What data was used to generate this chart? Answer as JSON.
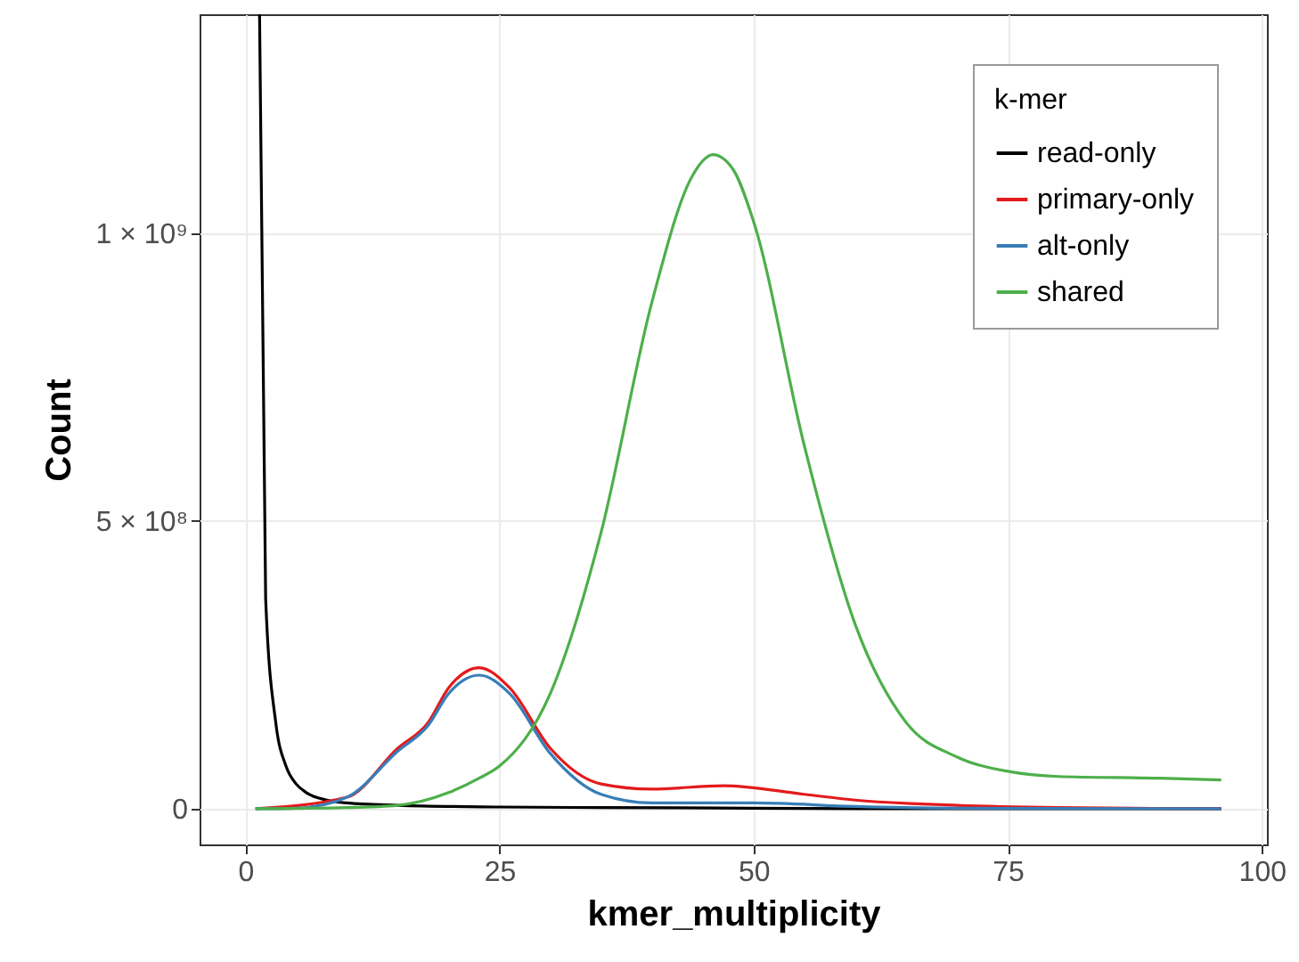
{
  "chart_data": {
    "type": "line",
    "xlabel": "kmer_multiplicity",
    "ylabel": "Count",
    "legend_title": "k-mer",
    "legend": "top right",
    "grid": true,
    "xlim": [
      -4.5,
      100.5
    ],
    "xticks": [
      0,
      25,
      50,
      75,
      100
    ],
    "ylim": [
      -62000000,
      1380000000
    ],
    "yticks": [
      0,
      {
        "value": 500000000,
        "label": "5 × 10⁸"
      },
      {
        "value": 1000000000,
        "label": "1 × 10⁹"
      }
    ],
    "series": [
      {
        "name": "read-only",
        "color": "#000000",
        "x": [
          1.4,
          2,
          3,
          4,
          5,
          6,
          8,
          10,
          15,
          25,
          35,
          50,
          60,
          75,
          96
        ],
        "values": [
          1380000000,
          365000000,
          149000000,
          74000000,
          43000000,
          28000000,
          15000000,
          10000000,
          6000000,
          3000000,
          2000000,
          1000000,
          0,
          0,
          0
        ]
      },
      {
        "name": "primary-only",
        "color": "#e41a1c",
        "x": [
          1,
          10,
          15,
          18,
          20,
          23,
          26,
          30,
          35,
          40,
          47,
          55,
          60,
          70,
          80,
          96
        ],
        "values": [
          0,
          20000000,
          105000000,
          150000000,
          210000000,
          245000000,
          210000000,
          105000000,
          43000000,
          34000000,
          40000000,
          25000000,
          15000000,
          6000000,
          2000000,
          0
        ]
      },
      {
        "name": "alt-only",
        "color": "#377eb8",
        "x": [
          1,
          5,
          10,
          15,
          18,
          20,
          23,
          26,
          30,
          35,
          40,
          50,
          60,
          70,
          96
        ],
        "values": [
          0,
          1000000,
          20000000,
          100000000,
          145000000,
          200000000,
          232000000,
          200000000,
          96000000,
          25000000,
          10000000,
          10000000,
          4000000,
          1000000,
          0
        ]
      },
      {
        "name": "shared",
        "color": "#4daf4a",
        "x": [
          1,
          10,
          15,
          20,
          23,
          25,
          30,
          35,
          40,
          44,
          46,
          48,
          50,
          55,
          60,
          65,
          70,
          75,
          80,
          90,
          96
        ],
        "values": [
          0,
          2000000,
          6000000,
          28000000,
          53000000,
          74000000,
          200000000,
          480000000,
          880000000,
          1100000000,
          1136000000,
          1110000000,
          1020000000,
          630000000,
          320000000,
          150000000,
          90000000,
          65000000,
          56000000,
          53000000,
          50000000
        ]
      }
    ]
  }
}
